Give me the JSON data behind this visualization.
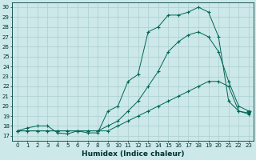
{
  "xlabel": "Humidex (Indice chaleur)",
  "xlim": [
    -0.5,
    23.5
  ],
  "ylim": [
    16.5,
    30.5
  ],
  "yticks": [
    17,
    18,
    19,
    20,
    21,
    22,
    23,
    24,
    25,
    26,
    27,
    28,
    29,
    30
  ],
  "xticks": [
    0,
    1,
    2,
    3,
    4,
    5,
    6,
    7,
    8,
    9,
    10,
    11,
    12,
    13,
    14,
    15,
    16,
    17,
    18,
    19,
    20,
    21,
    22,
    23
  ],
  "bg_color": "#cce8e8",
  "grid_color": "#aacfcf",
  "line_color": "#006655",
  "line1_x": [
    0,
    1,
    2,
    3,
    4,
    5,
    6,
    7,
    8,
    9,
    10,
    11,
    12,
    13,
    14,
    15,
    16,
    17,
    18,
    19,
    20,
    21,
    22,
    23
  ],
  "line1_y": [
    17.5,
    17.8,
    18.0,
    18.0,
    17.3,
    17.2,
    17.5,
    17.3,
    17.3,
    19.5,
    20.0,
    22.5,
    23.2,
    27.5,
    28.0,
    29.2,
    29.2,
    29.5,
    30.0,
    29.5,
    27.0,
    20.5,
    19.5,
    19.3
  ],
  "line2_x": [
    0,
    1,
    2,
    3,
    4,
    5,
    6,
    7,
    8,
    9,
    10,
    11,
    12,
    13,
    14,
    15,
    16,
    17,
    18,
    19,
    20,
    21,
    22,
    23
  ],
  "line2_y": [
    17.5,
    17.5,
    17.5,
    17.5,
    17.5,
    17.5,
    17.5,
    17.5,
    17.5,
    18.0,
    18.5,
    19.5,
    20.5,
    22.0,
    23.5,
    25.5,
    26.5,
    27.2,
    27.5,
    27.0,
    25.5,
    22.5,
    20.0,
    19.5
  ],
  "line3_x": [
    0,
    1,
    2,
    3,
    4,
    5,
    6,
    7,
    8,
    9,
    10,
    11,
    12,
    13,
    14,
    15,
    16,
    17,
    18,
    19,
    20,
    21,
    22,
    23
  ],
  "line3_y": [
    17.5,
    17.5,
    17.5,
    17.5,
    17.5,
    17.5,
    17.5,
    17.5,
    17.5,
    17.5,
    18.0,
    18.5,
    19.0,
    19.5,
    20.0,
    20.5,
    21.0,
    21.5,
    22.0,
    22.5,
    22.5,
    22.0,
    19.5,
    19.2
  ],
  "xlabel_fontsize": 6.5,
  "tick_fontsize": 5.0
}
